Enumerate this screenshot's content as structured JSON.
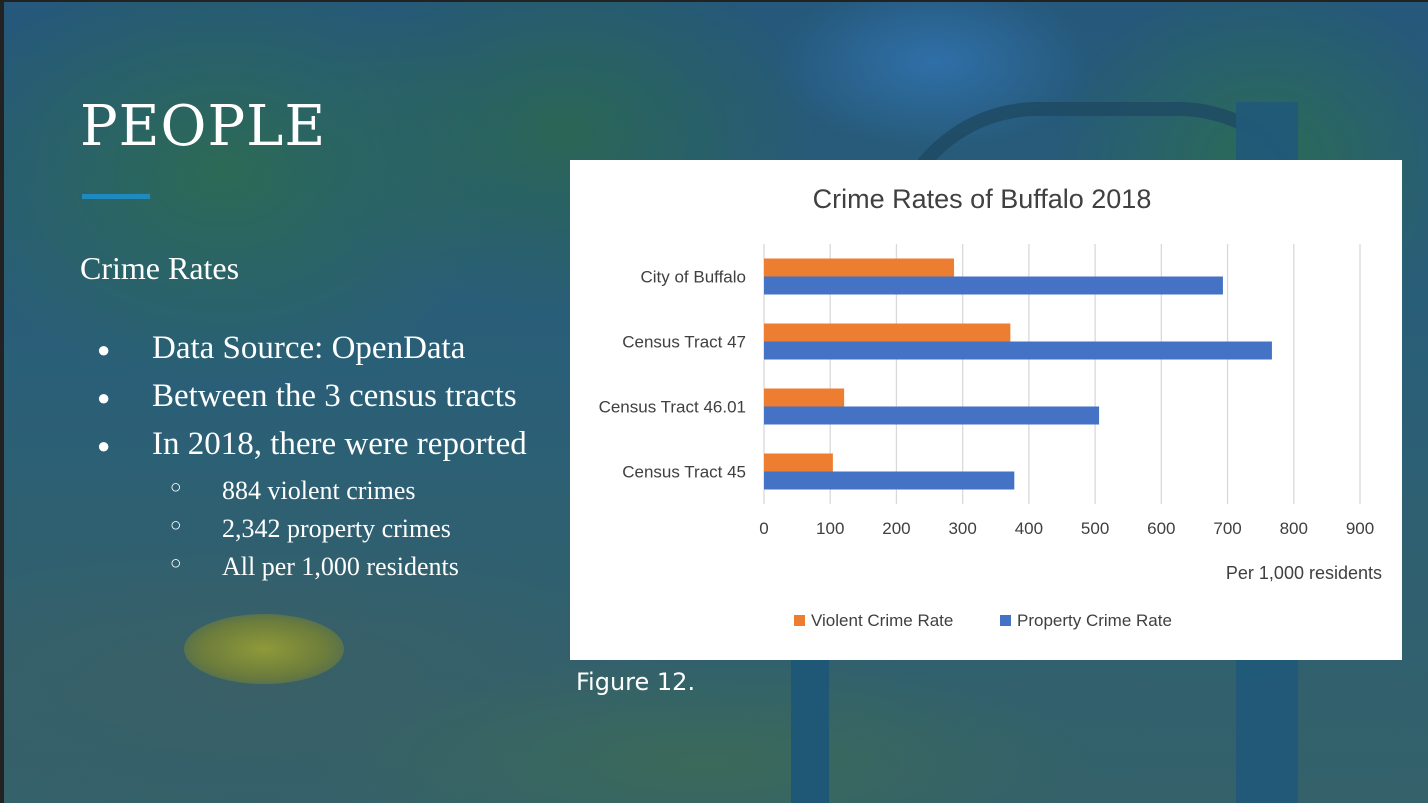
{
  "slide": {
    "title": "PEOPLE",
    "subtitle": "Crime Rates",
    "bullets": [
      "Data Source: OpenData",
      "Between the 3 census tracts",
      "In 2018, there were reported"
    ],
    "sub_bullets": [
      "884 violent crimes",
      "2,342 property crimes",
      "All per 1,000 residents"
    ],
    "bullet_glyph": "●",
    "sub_bullet_glyph": "○",
    "caption": "Figure 12."
  },
  "chart_data": {
    "type": "bar",
    "orientation": "horizontal",
    "title": "Crime Rates of Buffalo 2018",
    "xlabel": "Per 1,000 residents",
    "ylabel": "",
    "categories": [
      "City of Buffalo",
      "Census Tract 47",
      "Census Tract 46.01",
      "Census Tract 45"
    ],
    "series": [
      {
        "name": "Violent Crime Rate",
        "color": "#ED7D31",
        "values": [
          287,
          372,
          121,
          104
        ]
      },
      {
        "name": "Property Crime Rate",
        "color": "#4472C4",
        "values": [
          693,
          767,
          506,
          378
        ]
      }
    ],
    "xlim": [
      0,
      900
    ],
    "xticks": [
      "0",
      "100",
      "200",
      "300",
      "400",
      "500",
      "600",
      "700",
      "800",
      "900"
    ],
    "grid": "vertical",
    "legend": "bottom"
  }
}
